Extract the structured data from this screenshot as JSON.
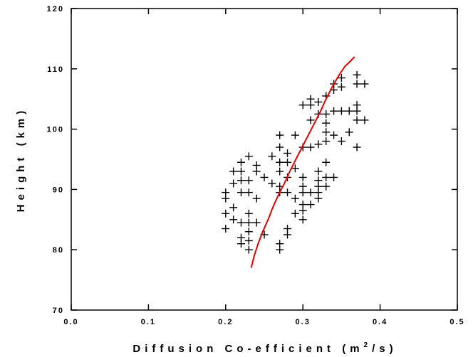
{
  "chart_data": {
    "type": "scatter",
    "xlabel": "Diffusion Co-efficient (m",
    "xlabel_sup": "2",
    "xlabel_tail": "/s)",
    "ylabel": "Height (km)",
    "xlim": [
      0.0,
      0.5
    ],
    "ylim": [
      70,
      120
    ],
    "x_ticks": [
      "0.0",
      "0.1",
      "0.2",
      "0.3",
      "0.4",
      "0.5"
    ],
    "y_ticks": [
      "70",
      "80",
      "90",
      "100",
      "110",
      "120"
    ],
    "grid": false,
    "series": [
      {
        "kind": "points",
        "marker": "plus",
        "color": "#000000",
        "points": [
          [
            0.2,
            89.5
          ],
          [
            0.2,
            88.5
          ],
          [
            0.2,
            86.0
          ],
          [
            0.2,
            83.5
          ],
          [
            0.21,
            87.0
          ],
          [
            0.21,
            85.0
          ],
          [
            0.21,
            91.0
          ],
          [
            0.21,
            93.0
          ],
          [
            0.22,
            94.5
          ],
          [
            0.22,
            93.0
          ],
          [
            0.22,
            91.5
          ],
          [
            0.22,
            89.5
          ],
          [
            0.22,
            84.5
          ],
          [
            0.22,
            82.0
          ],
          [
            0.22,
            81.0
          ],
          [
            0.23,
            91.5
          ],
          [
            0.23,
            89.5
          ],
          [
            0.23,
            86.0
          ],
          [
            0.23,
            84.5
          ],
          [
            0.23,
            83.0
          ],
          [
            0.23,
            81.5
          ],
          [
            0.23,
            80.0
          ],
          [
            0.23,
            95.5
          ],
          [
            0.24,
            94.0
          ],
          [
            0.24,
            93.0
          ],
          [
            0.24,
            88.5
          ],
          [
            0.24,
            84.5
          ],
          [
            0.25,
            92.0
          ],
          [
            0.25,
            82.5
          ],
          [
            0.26,
            95.5
          ],
          [
            0.26,
            91.0
          ],
          [
            0.27,
            99.0
          ],
          [
            0.27,
            97.0
          ],
          [
            0.27,
            94.5
          ],
          [
            0.27,
            93.0
          ],
          [
            0.27,
            90.5
          ],
          [
            0.27,
            89.5
          ],
          [
            0.27,
            81.0
          ],
          [
            0.27,
            80.0
          ],
          [
            0.28,
            96.0
          ],
          [
            0.28,
            94.5
          ],
          [
            0.28,
            92.0
          ],
          [
            0.28,
            89.5
          ],
          [
            0.28,
            83.5
          ],
          [
            0.28,
            82.5
          ],
          [
            0.29,
            99.0
          ],
          [
            0.29,
            93.5
          ],
          [
            0.29,
            88.5
          ],
          [
            0.29,
            86.0
          ],
          [
            0.3,
            104.0
          ],
          [
            0.3,
            97.0
          ],
          [
            0.3,
            92.0
          ],
          [
            0.3,
            90.5
          ],
          [
            0.3,
            89.5
          ],
          [
            0.3,
            87.5
          ],
          [
            0.3,
            86.5
          ],
          [
            0.3,
            85.0
          ],
          [
            0.31,
            105.0
          ],
          [
            0.31,
            104.0
          ],
          [
            0.31,
            101.5
          ],
          [
            0.31,
            97.0
          ],
          [
            0.31,
            89.5
          ],
          [
            0.31,
            87.5
          ],
          [
            0.32,
            104.5
          ],
          [
            0.32,
            102.5
          ],
          [
            0.32,
            97.5
          ],
          [
            0.32,
            93.0
          ],
          [
            0.32,
            91.5
          ],
          [
            0.32,
            90.5
          ],
          [
            0.32,
            89.5
          ],
          [
            0.32,
            88.5
          ],
          [
            0.33,
            105.5
          ],
          [
            0.33,
            102.5
          ],
          [
            0.33,
            101.0
          ],
          [
            0.33,
            99.5
          ],
          [
            0.33,
            98.0
          ],
          [
            0.33,
            94.5
          ],
          [
            0.33,
            92.0
          ],
          [
            0.33,
            90.5
          ],
          [
            0.34,
            107.5
          ],
          [
            0.34,
            106.5
          ],
          [
            0.34,
            103.0
          ],
          [
            0.34,
            99.0
          ],
          [
            0.34,
            92.0
          ],
          [
            0.35,
            108.5
          ],
          [
            0.35,
            107.0
          ],
          [
            0.35,
            103.0
          ],
          [
            0.35,
            98.0
          ],
          [
            0.36,
            103.0
          ],
          [
            0.36,
            99.5
          ],
          [
            0.37,
            109.0
          ],
          [
            0.37,
            107.5
          ],
          [
            0.37,
            104.0
          ],
          [
            0.37,
            103.0
          ],
          [
            0.37,
            101.5
          ],
          [
            0.37,
            97.0
          ],
          [
            0.38,
            107.5
          ],
          [
            0.38,
            101.5
          ]
        ]
      },
      {
        "kind": "line",
        "color": "#e00000",
        "points": [
          [
            0.233,
            77.0
          ],
          [
            0.237,
            79.0
          ],
          [
            0.242,
            81.0
          ],
          [
            0.248,
            83.0
          ],
          [
            0.255,
            85.0
          ],
          [
            0.261,
            87.0
          ],
          [
            0.268,
            89.0
          ],
          [
            0.276,
            91.0
          ],
          [
            0.283,
            93.0
          ],
          [
            0.291,
            95.0
          ],
          [
            0.299,
            97.0
          ],
          [
            0.307,
            99.0
          ],
          [
            0.315,
            101.0
          ],
          [
            0.323,
            103.0
          ],
          [
            0.33,
            105.0
          ],
          [
            0.338,
            107.0
          ],
          [
            0.347,
            109.0
          ],
          [
            0.355,
            110.5
          ],
          [
            0.361,
            111.2
          ],
          [
            0.367,
            112.0
          ]
        ]
      }
    ]
  }
}
